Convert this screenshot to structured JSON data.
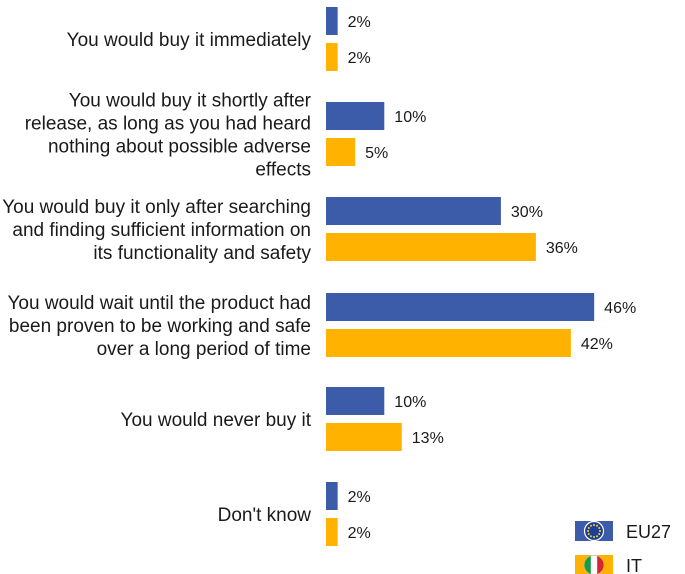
{
  "chart_data": {
    "type": "bar",
    "orientation": "horizontal",
    "categories": [
      [
        "You would buy it immediately"
      ],
      [
        "You would buy it shortly after",
        "release, as long as you had heard",
        "nothing about possible adverse",
        "effects"
      ],
      [
        "You would buy it only after searching",
        "and finding sufficient information on",
        "its functionality and safety"
      ],
      [
        "You would wait until the product had",
        "been proven to be working and safe",
        "over a long period of time"
      ],
      [
        "You would never buy it"
      ],
      [
        "Don't know"
      ]
    ],
    "series": [
      {
        "name": "EU27",
        "color": "#3c5ba8",
        "icon": "eu-flag-icon",
        "values": [
          2,
          10,
          30,
          46,
          10,
          2
        ]
      },
      {
        "name": "IT",
        "color": "#ffb200",
        "icon": "italy-flag-icon",
        "values": [
          2,
          5,
          36,
          42,
          13,
          2
        ]
      }
    ],
    "value_suffix": "%",
    "xlim": [
      0,
      100
    ],
    "grid": false,
    "legend_position": "bottom-right"
  }
}
